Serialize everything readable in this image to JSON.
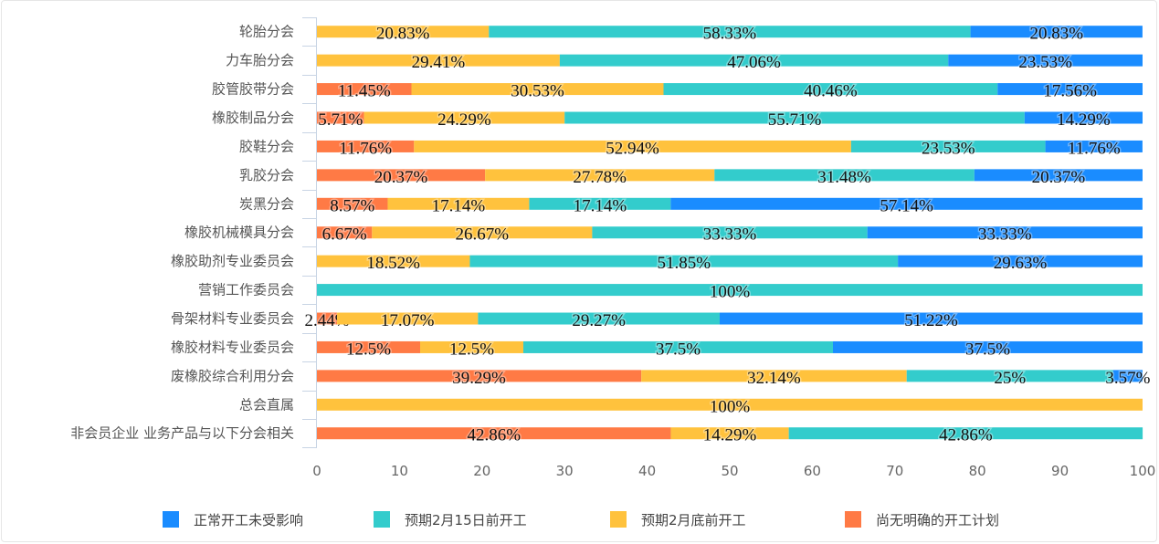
{
  "chart_data": {
    "type": "bar",
    "orientation": "horizontal",
    "stacked": true,
    "categories": [
      "轮胎分会",
      "力车胎分会",
      "胶管胶带分会",
      "橡胶制品分会",
      "胶鞋分会",
      "乳胶分会",
      "炭黑分会",
      "橡胶机械模具分会",
      "橡胶助剂专业委员会",
      "营销工作委员会",
      "骨架材料专业委员会",
      "橡胶材料专业委员会",
      "废橡胶综合利用分会",
      "总会直属",
      "非会员企业 业务产品与以下分会相关"
    ],
    "series": [
      {
        "name": "尚无明确的开工计划",
        "color": "#ff7a45",
        "values": [
          0,
          0,
          11.45,
          5.71,
          11.76,
          20.37,
          8.57,
          6.67,
          0,
          0,
          2.44,
          12.5,
          39.29,
          0,
          42.86
        ]
      },
      {
        "name": "预期2月底前开工",
        "color": "#ffc23d",
        "values": [
          20.83,
          29.41,
          30.53,
          24.29,
          52.94,
          27.78,
          17.14,
          26.67,
          18.52,
          0,
          17.07,
          12.5,
          32.14,
          100,
          14.29
        ]
      },
      {
        "name": "预期2月15日前开工",
        "color": "#33cccc",
        "values": [
          58.33,
          47.06,
          40.46,
          55.71,
          23.53,
          31.48,
          17.14,
          33.33,
          51.85,
          100,
          29.27,
          37.5,
          25,
          0,
          42.86
        ]
      },
      {
        "name": "正常开工未受影响",
        "color": "#1a8cff",
        "values": [
          20.83,
          23.53,
          17.56,
          14.29,
          11.76,
          20.37,
          57.14,
          33.33,
          29.63,
          0,
          51.22,
          37.5,
          3.57,
          0,
          0
        ]
      }
    ],
    "legend_order": [
      "正常开工未受影响",
      "预期2月15日前开工",
      "预期2月底前开工",
      "尚无明确的开工计划"
    ],
    "legend_placement": "bottom",
    "xlim": [
      0,
      100
    ],
    "xticks": [
      "0",
      "10",
      "20",
      "30",
      "40",
      "50",
      "60",
      "70",
      "80",
      "90",
      "100"
    ],
    "data_label_suffix": "%",
    "title": "",
    "xlabel": "",
    "ylabel": "",
    "grid": false
  }
}
